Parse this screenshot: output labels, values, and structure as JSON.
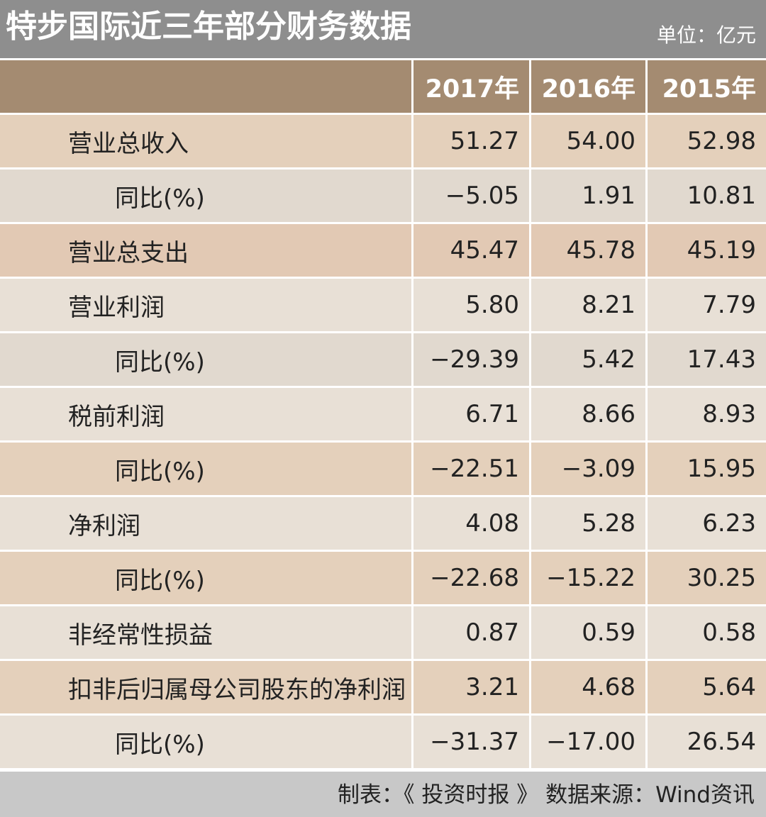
{
  "title": "特步国际近三年部分财务数据",
  "unit": "单位：亿元",
  "footer": "制表：《 投资时报 》 数据来源：Wind资讯",
  "colors": {
    "title_bg": "#8e8e8e",
    "header_bg": "#a48b71",
    "row_tan": "#e4d0bb",
    "row_grey": "#e1d9cf",
    "row_pink": "#e2c9b4",
    "row_light": "#e8e0d6",
    "footer_bg": "#c8c8c8"
  },
  "chart_data": {
    "type": "table",
    "title": "特步国际近三年部分财务数据",
    "columns": [
      "",
      "2017年",
      "2016年",
      "2015年"
    ],
    "rows": [
      {
        "label": "营业总收入",
        "indent": false,
        "bg": "#e4d0bb",
        "values": [
          "51.27",
          "54.00",
          "52.98"
        ]
      },
      {
        "label": "同比(%)",
        "indent": true,
        "bg": "#e1d9cf",
        "values": [
          "−5.05",
          "1.91",
          "10.81"
        ]
      },
      {
        "label": "营业总支出",
        "indent": false,
        "bg": "#e2c9b4",
        "values": [
          "45.47",
          "45.78",
          "45.19"
        ]
      },
      {
        "label": "营业利润",
        "indent": false,
        "bg": "#e8e0d6",
        "values": [
          "5.80",
          "8.21",
          "7.79"
        ]
      },
      {
        "label": "同比(%)",
        "indent": true,
        "bg": "#e1d9cf",
        "values": [
          "−29.39",
          "5.42",
          "17.43"
        ]
      },
      {
        "label": "税前利润",
        "indent": false,
        "bg": "#e8e0d6",
        "values": [
          "6.71",
          "8.66",
          "8.93"
        ]
      },
      {
        "label": "同比(%)",
        "indent": true,
        "bg": "#e4d0bb",
        "values": [
          "−22.51",
          "−3.09",
          "15.95"
        ]
      },
      {
        "label": "净利润",
        "indent": false,
        "bg": "#e8e0d6",
        "values": [
          "4.08",
          "5.28",
          "6.23"
        ]
      },
      {
        "label": "同比(%)",
        "indent": true,
        "bg": "#e4d0bb",
        "values": [
          "−22.68",
          "−15.22",
          "30.25"
        ]
      },
      {
        "label": "非经常性损益",
        "indent": false,
        "bg": "#e8e0d6",
        "values": [
          "0.87",
          "0.59",
          "0.58"
        ]
      },
      {
        "label": "扣非后归属母公司股东的净利润",
        "indent": false,
        "bg": "#e4d0bb",
        "values": [
          "3.21",
          "4.68",
          "5.64"
        ]
      },
      {
        "label": "同比(%)",
        "indent": true,
        "bg": "#e8e0d6",
        "values": [
          "−31.37",
          "−17.00",
          "26.54"
        ]
      }
    ]
  }
}
